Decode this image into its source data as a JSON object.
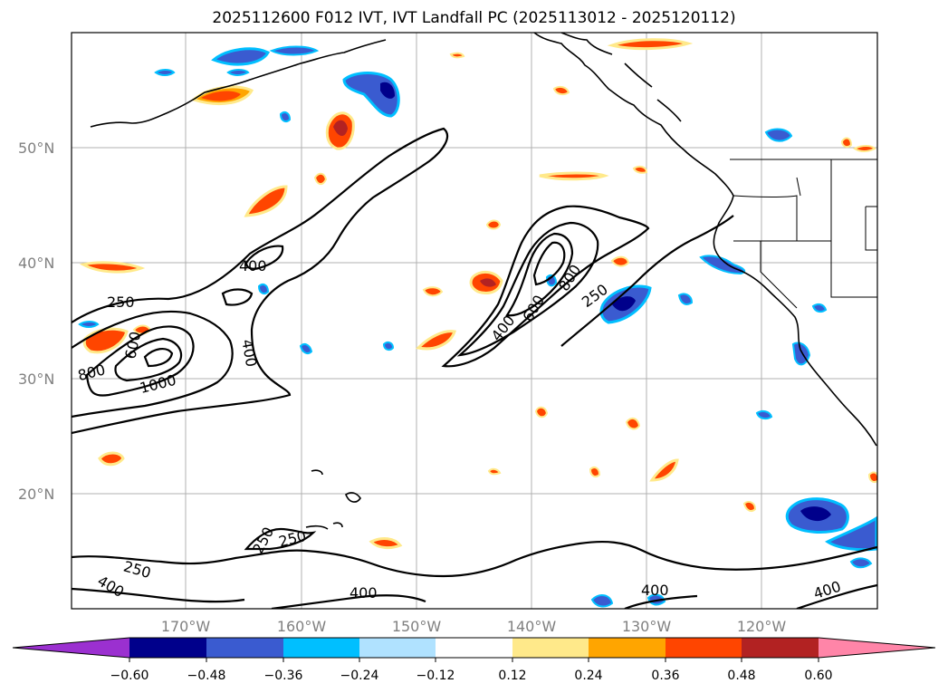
{
  "title": "2025112600 F012 IVT, IVT Landfall PC (2025113012 - 2025120112)",
  "axes": {
    "lat_labels": [
      "50°N",
      "40°N",
      "30°N",
      "20°N"
    ],
    "lon_labels": [
      "170°W",
      "160°W",
      "150°W",
      "140°W",
      "130°W",
      "120°W"
    ]
  },
  "contours": {
    "labels": [
      "400",
      "250",
      "600",
      "800",
      "1000",
      "400",
      "400",
      "600",
      "800",
      "250",
      "250",
      "250",
      "250",
      "400",
      "400",
      "400",
      "400"
    ]
  },
  "colorbar": {
    "ticks": [
      "−0.60",
      "−0.48",
      "−0.36",
      "−0.24",
      "−0.12",
      "0.12",
      "0.24",
      "0.36",
      "0.48",
      "0.60"
    ],
    "colors": [
      "#9b30d0",
      "#00008b",
      "#3a5bd0",
      "#00bfff",
      "#b0e2ff",
      "#ffffff",
      "#ffe98a",
      "#ffa500",
      "#ff4500",
      "#b22222",
      "#ff85a8"
    ]
  },
  "fill_colors": {
    "neg_light": "#b0e2ff",
    "neg_mid": "#00bfff",
    "neg_strong": "#3a5bd0",
    "neg_max": "#00008b",
    "pos_light": "#ffe98a",
    "pos_mid": "#ffa500",
    "pos_strong": "#ff4500",
    "pos_max": "#b22222"
  }
}
